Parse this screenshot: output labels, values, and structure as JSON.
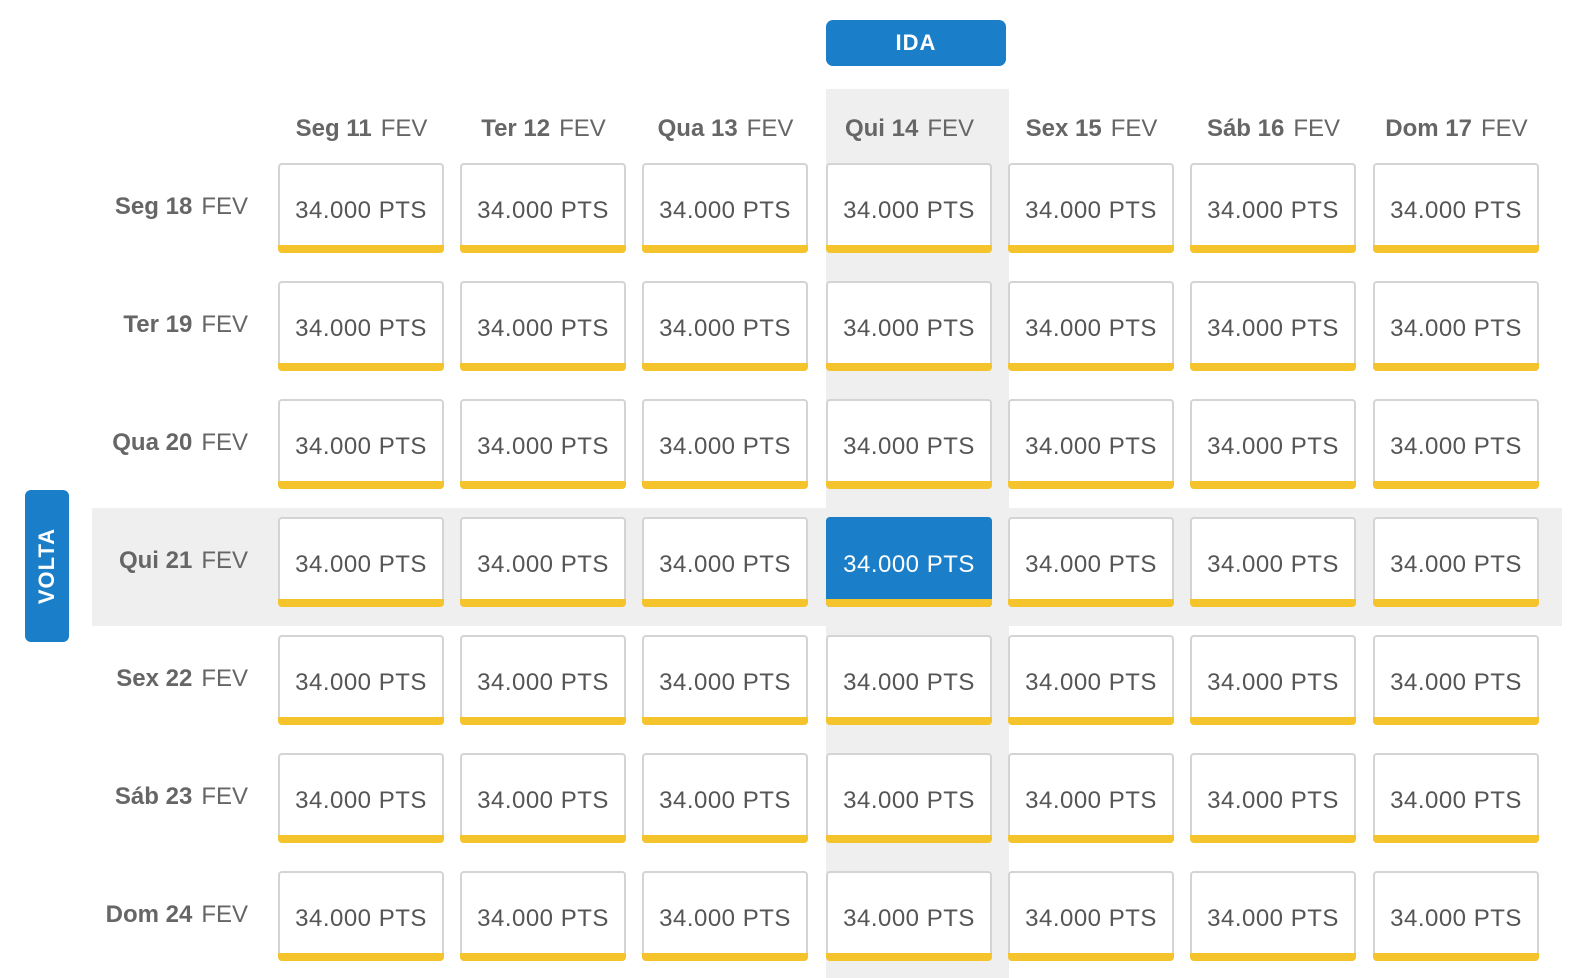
{
  "outbound_label": "IDA",
  "return_label": "VOLTA",
  "columns": [
    {
      "day": "Seg 11",
      "month": "FEV"
    },
    {
      "day": "Ter 12",
      "month": "FEV"
    },
    {
      "day": "Qua 13",
      "month": "FEV"
    },
    {
      "day": "Qui 14",
      "month": "FEV"
    },
    {
      "day": "Sex 15",
      "month": "FEV"
    },
    {
      "day": "Sáb 16",
      "month": "FEV"
    },
    {
      "day": "Dom 17",
      "month": "FEV"
    }
  ],
  "rows": [
    {
      "day": "Seg 18",
      "month": "FEV",
      "prices": [
        "34.000 PTS",
        "34.000 PTS",
        "34.000 PTS",
        "34.000 PTS",
        "34.000 PTS",
        "34.000 PTS",
        "34.000 PTS"
      ]
    },
    {
      "day": "Ter 19",
      "month": "FEV",
      "prices": [
        "34.000 PTS",
        "34.000 PTS",
        "34.000 PTS",
        "34.000 PTS",
        "34.000 PTS",
        "34.000 PTS",
        "34.000 PTS"
      ]
    },
    {
      "day": "Qua 20",
      "month": "FEV",
      "prices": [
        "34.000 PTS",
        "34.000 PTS",
        "34.000 PTS",
        "34.000 PTS",
        "34.000 PTS",
        "34.000 PTS",
        "34.000 PTS"
      ]
    },
    {
      "day": "Qui 21",
      "month": "FEV",
      "prices": [
        "34.000 PTS",
        "34.000 PTS",
        "34.000 PTS",
        "34.000 PTS",
        "34.000 PTS",
        "34.000 PTS",
        "34.000 PTS"
      ]
    },
    {
      "day": "Sex 22",
      "month": "FEV",
      "prices": [
        "34.000 PTS",
        "34.000 PTS",
        "34.000 PTS",
        "34.000 PTS",
        "34.000 PTS",
        "34.000 PTS",
        "34.000 PTS"
      ]
    },
    {
      "day": "Sáb 23",
      "month": "FEV",
      "prices": [
        "34.000 PTS",
        "34.000 PTS",
        "34.000 PTS",
        "34.000 PTS",
        "34.000 PTS",
        "34.000 PTS",
        "34.000 PTS"
      ]
    },
    {
      "day": "Dom 24",
      "month": "FEV",
      "prices": [
        "34.000 PTS",
        "34.000 PTS",
        "34.000 PTS",
        "34.000 PTS",
        "34.000 PTS",
        "34.000 PTS",
        "34.000 PTS"
      ]
    }
  ],
  "selected": {
    "row": 3,
    "col": 3
  },
  "colors": {
    "accent": "#1a7ec8",
    "indicator": "#f5c42c",
    "highlight": "#efefef"
  }
}
